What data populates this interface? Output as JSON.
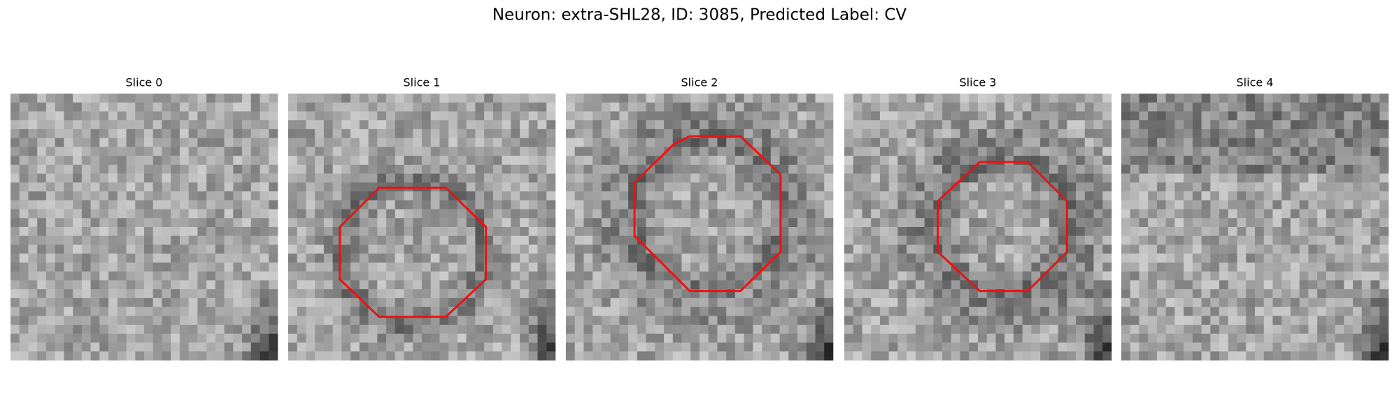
{
  "title": "Neuron: extra-SHL28, ID: 3085, Predicted Label: CV",
  "panels": [
    {
      "title": "Slice 0"
    },
    {
      "title": "Slice 1"
    },
    {
      "title": "Slice 2"
    },
    {
      "title": "Slice 3"
    },
    {
      "title": "Slice 4"
    }
  ]
}
